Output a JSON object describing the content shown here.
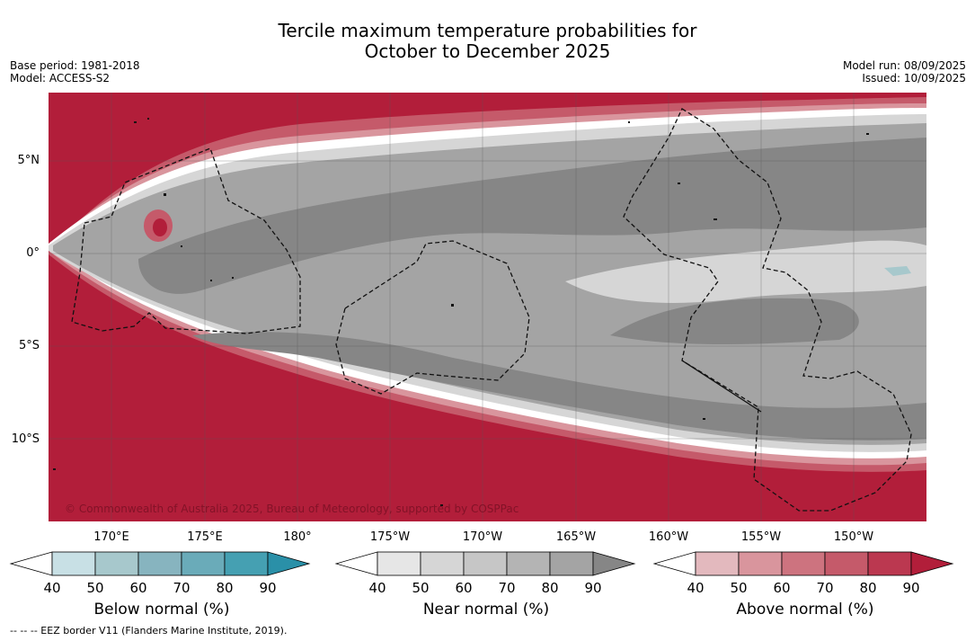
{
  "title": {
    "line1": "Tercile maximum temperature probabilities for",
    "line2": "October to December 2025"
  },
  "left_meta": {
    "base_period": "Base period: 1981-2018",
    "model": "Model: ACCESS-S2"
  },
  "right_meta": {
    "model_run": "Model run: 08/09/2025",
    "issued": "Issued: 10/09/2025"
  },
  "map": {
    "lat_labels": [
      "5°N",
      "0°",
      "5°S",
      "10°S"
    ],
    "lon_labels": [
      "170°E",
      "175°E",
      "180°",
      "175°W",
      "170°W",
      "165°W",
      "160°W",
      "155°W",
      "150°W"
    ],
    "copyright": "© Commonwealth of Australia 2025, Bureau of Meteorology, supported by COSPPac",
    "colors": {
      "above_dark": "#b21e3a",
      "near_dark": "#868686",
      "near_mid": "#a4a4a4",
      "near_light": "#d6d6d6",
      "below_light": "#a7c8cc"
    }
  },
  "colorbars": [
    {
      "title": "Below normal (%)",
      "ticks": [
        "40",
        "50",
        "60",
        "70",
        "80",
        "90"
      ],
      "colors": [
        "#ffffff",
        "#c8e0e5",
        "#a7c8cc",
        "#87b4bf",
        "#6aabb9",
        "#45a0b2",
        "#2a90a8"
      ]
    },
    {
      "title": "Near normal (%)",
      "ticks": [
        "40",
        "50",
        "60",
        "70",
        "80",
        "90"
      ],
      "colors": [
        "#ffffff",
        "#e6e6e6",
        "#d6d6d6",
        "#c6c6c6",
        "#b4b4b4",
        "#a4a4a4",
        "#868686"
      ]
    },
    {
      "title": "Above normal (%)",
      "ticks": [
        "40",
        "50",
        "60",
        "70",
        "80",
        "90"
      ],
      "colors": [
        "#ffffff",
        "#e3b9be",
        "#d9959d",
        "#cd737f",
        "#c55a6a",
        "#bb3850",
        "#b21e3a"
      ]
    }
  ],
  "footer": "--  --  -- EEZ border V11 (Flanders Marine Institute, 2019)."
}
